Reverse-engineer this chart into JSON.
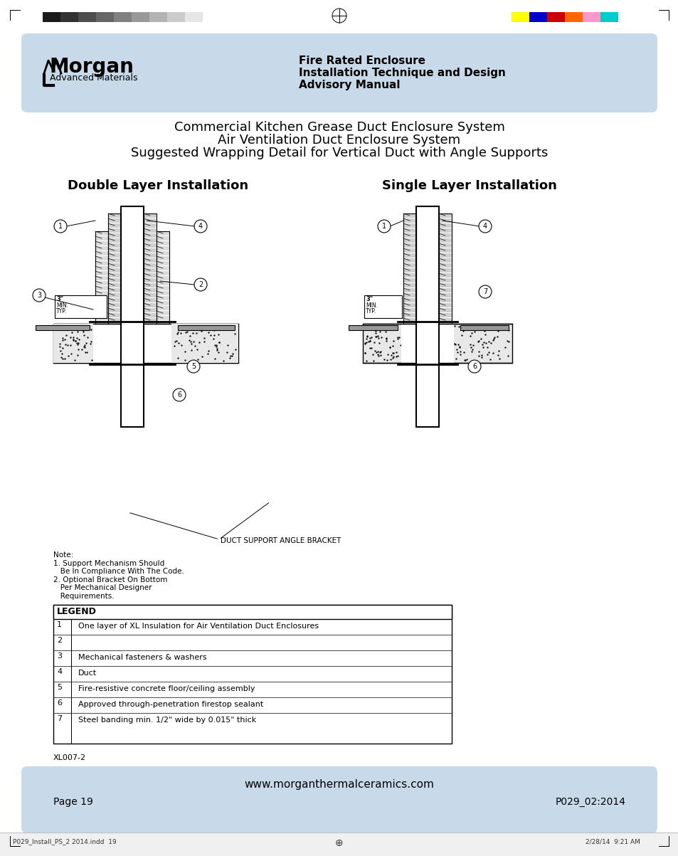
{
  "title_line1": "Commercial Kitchen Grease Duct Enclosure System",
  "title_line2": "Air Ventilation Duct Enclosure System",
  "title_line3": "Suggested Wrapping Detail for Vertical Duct with Angle Supports",
  "subtitle_left": "Double Layer Installation",
  "subtitle_right": "Single Layer Installation",
  "header_bg_color": "#c8daea",
  "header_text1": "Fire Rated Enclosure",
  "header_text2": "Installation Technique and Design",
  "header_text3": "Advisory Manual",
  "footer_bg_color": "#c8daea",
  "footer_website": "www.morganthermalceramics.com",
  "footer_page": "Page 19",
  "footer_code": "P029_02:2014",
  "note_text": "Note:\n1. Support Mechanism Should\n   Be In Compliance With The Code.\n2. Optional Bracket On Bottom\n   Per Mechanical Designer\n   Requirements.",
  "legend_title": "LEGEND",
  "legend_items": [
    [
      "1",
      "One layer of XL Insulation for Air Ventilation Duct Enclosures"
    ],
    [
      "2",
      ""
    ],
    [
      "3",
      "Mechanical fasteners & washers"
    ],
    [
      "4",
      "Duct"
    ],
    [
      "5",
      "Fire-resistive concrete floor/ceiling assembly"
    ],
    [
      "6",
      "Approved through-penetration firestop sealant"
    ],
    [
      "7",
      "Steel banding min. 1/2\" wide by 0.015\" thick"
    ]
  ],
  "duct_support_label": "DUCT SUPPORT ANGLE BRACKET",
  "ref_code": "XL007-2",
  "bottom_file": "P029_Install_PS_2 2014.indd  19",
  "bottom_date": "2/28/14  9:21 AM",
  "color_bars_left": [
    "#1a1a1a",
    "#333333",
    "#4d4d4d",
    "#666666",
    "#808080",
    "#999999",
    "#b3b3b3",
    "#cccccc",
    "#e6e6e6"
  ],
  "color_bars_right": [
    "#ffff00",
    "#0000cc",
    "#cc0000",
    "#ff6600",
    "#ff99cc",
    "#00cccc",
    "#ffffff"
  ]
}
